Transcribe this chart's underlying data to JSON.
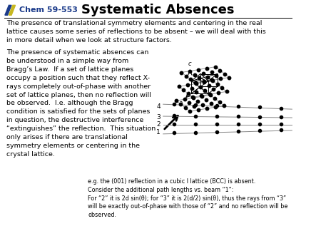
{
  "title": "Systematic Absences",
  "header_label": "Chem 59-553",
  "bg_color": "#ffffff",
  "para1": "The presence of translational symmetry elements and centering in the real\nlattice causes some series of reflections to be absent – we will deal with this\nin more detail when we look at structure factors.",
  "para2_lines": [
    "The presence of systematic absences can",
    "be understood in a simple way from",
    "Bragg’s Law.  If a set of lattice planes",
    "occupy a position such that they reflect X-",
    "rays completely out-of-phase with another",
    "set of lattice planes, then no reflection will",
    "be observed.  I.e. although the Bragg",
    "condition is satisfied for the sets of planes",
    "in question, the destructive interference",
    "“extinguishes” the reflection.  This situation",
    "only arises if there are translational",
    "symmetry elements or centering in the",
    "crystal lattice."
  ],
  "caption": "e.g. the (001) reflection in a cubic I lattice (BCC) is absent.\nConsider the additional path lengths vs. beam “1”:\nFor “2” it is 2d sin(θ); for “3” it is 2(d/2) sin(θ), thus the rays from “3”\nwill be exactly out-of-phase with those of “2” and no reflection will be\nobserved.",
  "title_fontsize": 13,
  "header_fontsize": 8,
  "body_fontsize": 6.8,
  "caption_fontsize": 5.8,
  "logo_blue": "#1a3a8a",
  "logo_yellow": "#c8b820",
  "text_color": "#000000",
  "header_color": "#1a3a8a"
}
